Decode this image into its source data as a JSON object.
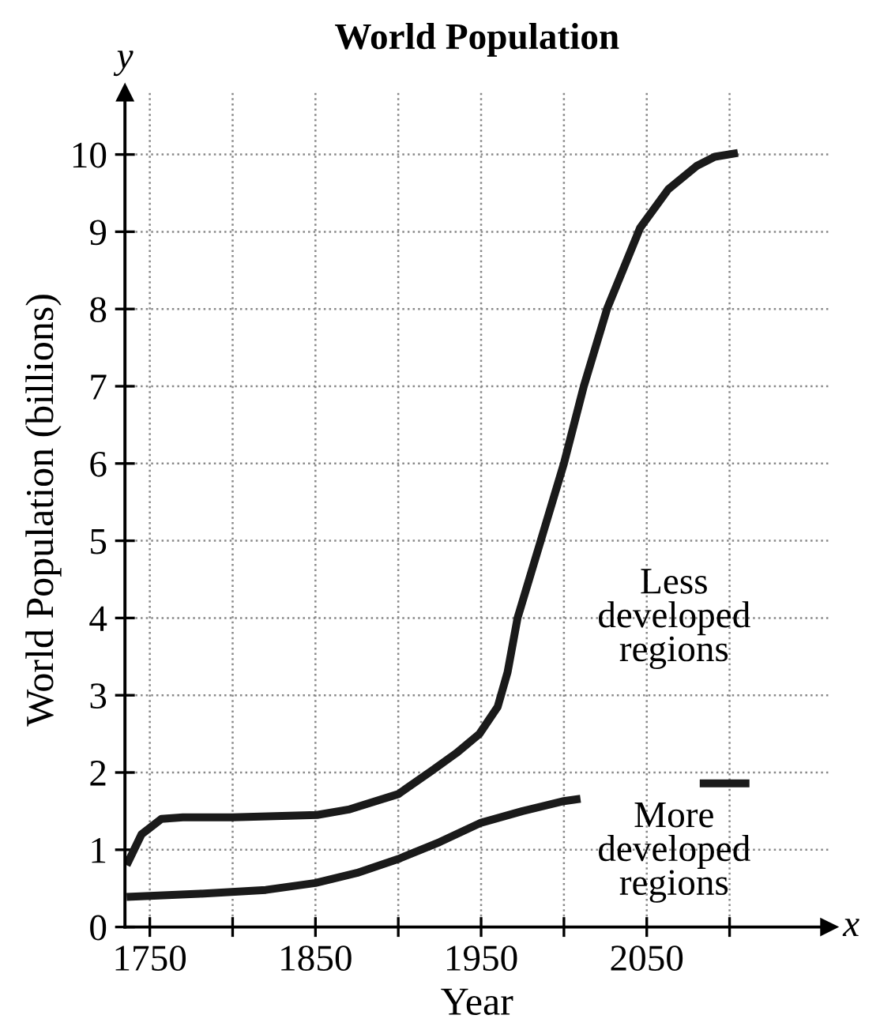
{
  "chart_data": {
    "type": "line",
    "title": "World Population",
    "xlabel": "Year",
    "ylabel": "World Population (billions)",
    "xlim": [
      1735,
      2160
    ],
    "ylim": [
      0,
      10.8
    ],
    "xticks": [
      1750,
      {
        "value": 1800,
        "label": null
      },
      1850,
      {
        "value": 1900,
        "label": null
      },
      1950,
      {
        "value": 2000,
        "label": null
      },
      2050,
      {
        "value": 2100,
        "label": null
      }
    ],
    "yticks": [
      0,
      1,
      2,
      3,
      4,
      5,
      6,
      7,
      8,
      9,
      10
    ],
    "grid": true,
    "line_style": "solid",
    "marker": "none",
    "series": [
      {
        "color": "#1a1a1a",
        "x": [
          1736,
          1745,
          1757,
          1770,
          1800,
          1851,
          1870,
          1900,
          1920,
          1935,
          1949,
          1960,
          1966,
          1972,
          1979,
          1986,
          2000,
          2012,
          2026,
          2046,
          2063,
          2080,
          2091,
          2105
        ],
        "values": [
          0.8,
          1.2,
          1.4,
          1.42,
          1.42,
          1.45,
          1.52,
          1.72,
          2.02,
          2.25,
          2.5,
          2.85,
          3.3,
          4.0,
          4.5,
          5.0,
          6.0,
          7.0,
          8.0,
          9.05,
          9.55,
          9.85,
          9.97,
          10.02
        ]
      },
      {
        "color": "#1a1a1a",
        "x": [
          1736,
          1780,
          1820,
          1850,
          1875,
          1900,
          1925,
          1950,
          1975,
          2000,
          2010,
          2045,
          2082,
          2112
        ],
        "values": [
          0.39,
          0.43,
          0.48,
          0.57,
          0.7,
          0.88,
          1.1,
          1.35,
          1.5,
          1.63,
          1.66,
          null,
          1.86,
          1.86
        ]
      }
    ],
    "annotations": [
      "y",
      "x",
      "Less\ndeveloped\nregions",
      "More\ndeveloped\nregions"
    ]
  }
}
